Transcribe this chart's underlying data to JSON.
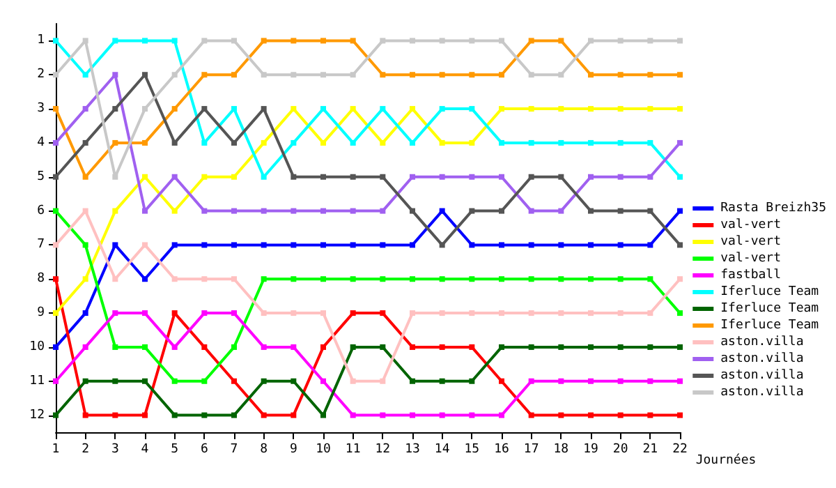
{
  "chart_data": {
    "type": "line",
    "xlabel": "Journées",
    "categories": [
      "1",
      "2",
      "3",
      "4",
      "5",
      "6",
      "7",
      "8",
      "9",
      "10",
      "11",
      "12",
      "13",
      "14",
      "15",
      "16",
      "17",
      "18",
      "19",
      "20",
      "21",
      "22"
    ],
    "ylim": [
      12.5,
      0.5
    ],
    "yticks": [
      1,
      2,
      3,
      4,
      5,
      6,
      7,
      8,
      9,
      10,
      11,
      12
    ],
    "grid": false,
    "legend": "right",
    "marker": "square",
    "line_style": "solid",
    "series": [
      {
        "name": "Rasta Breizh35",
        "color": "#0000ff",
        "values": [
          10,
          9,
          7,
          8,
          7,
          7,
          7,
          7,
          7,
          7,
          7,
          7,
          7,
          6,
          7,
          7,
          7,
          7,
          7,
          7,
          7,
          6
        ]
      },
      {
        "name": "val-vert",
        "color": "#ff0000",
        "values": [
          8,
          12,
          12,
          12,
          9,
          10,
          11,
          12,
          12,
          10,
          9,
          9,
          10,
          10,
          10,
          11,
          12,
          12,
          12,
          12,
          12,
          12
        ]
      },
      {
        "name": "val-vert",
        "color": "#ffff00",
        "values": [
          9,
          8,
          6,
          5,
          6,
          5,
          5,
          4,
          3,
          4,
          3,
          4,
          3,
          4,
          4,
          3,
          3,
          3,
          3,
          3,
          3,
          3
        ]
      },
      {
        "name": "val-vert",
        "color": "#00ff00",
        "values": [
          6,
          7,
          10,
          10,
          11,
          11,
          10,
          8,
          8,
          8,
          8,
          8,
          8,
          8,
          8,
          8,
          8,
          8,
          8,
          8,
          8,
          9
        ]
      },
      {
        "name": "fastball",
        "color": "#ff00ff",
        "values": [
          11,
          10,
          9,
          9,
          10,
          9,
          9,
          10,
          10,
          11,
          12,
          12,
          12,
          12,
          12,
          12,
          11,
          11,
          11,
          11,
          11,
          11
        ]
      },
      {
        "name": "Iferluce Team",
        "color": "#00ffff",
        "values": [
          1,
          2,
          1,
          1,
          1,
          4,
          3,
          5,
          4,
          3,
          4,
          3,
          4,
          3,
          3,
          4,
          4,
          4,
          4,
          4,
          4,
          5
        ]
      },
      {
        "name": "Iferluce Team",
        "color": "#006400",
        "values": [
          12,
          11,
          11,
          11,
          12,
          12,
          12,
          11,
          11,
          12,
          10,
          10,
          11,
          11,
          11,
          10,
          10,
          10,
          10,
          10,
          10,
          10
        ]
      },
      {
        "name": "Iferluce Team",
        "color": "#ff9900",
        "values": [
          3,
          5,
          4,
          4,
          3,
          2,
          2,
          1,
          1,
          1,
          1,
          2,
          2,
          2,
          2,
          2,
          1,
          1,
          2,
          2,
          2,
          2
        ]
      },
      {
        "name": "aston.villa",
        "color": "#ffc0c0",
        "values": [
          7,
          6,
          8,
          7,
          8,
          8,
          8,
          9,
          9,
          9,
          11,
          11,
          9,
          9,
          9,
          9,
          9,
          9,
          9,
          9,
          9,
          8
        ]
      },
      {
        "name": "aston.villa",
        "color": "#a060f0",
        "values": [
          4,
          3,
          2,
          6,
          5,
          6,
          6,
          6,
          6,
          6,
          6,
          6,
          5,
          5,
          5,
          5,
          6,
          6,
          5,
          5,
          5,
          4
        ]
      },
      {
        "name": "aston.villa",
        "color": "#555555",
        "values": [
          5,
          4,
          3,
          2,
          4,
          3,
          4,
          3,
          5,
          5,
          5,
          5,
          6,
          7,
          6,
          6,
          5,
          5,
          6,
          6,
          6,
          7
        ]
      },
      {
        "name": "aston.villa",
        "color": "#c8c8c8",
        "values": [
          2,
          1,
          5,
          3,
          2,
          1,
          1,
          2,
          2,
          2,
          2,
          1,
          1,
          1,
          1,
          1,
          2,
          2,
          1,
          1,
          1,
          1
        ]
      }
    ]
  }
}
